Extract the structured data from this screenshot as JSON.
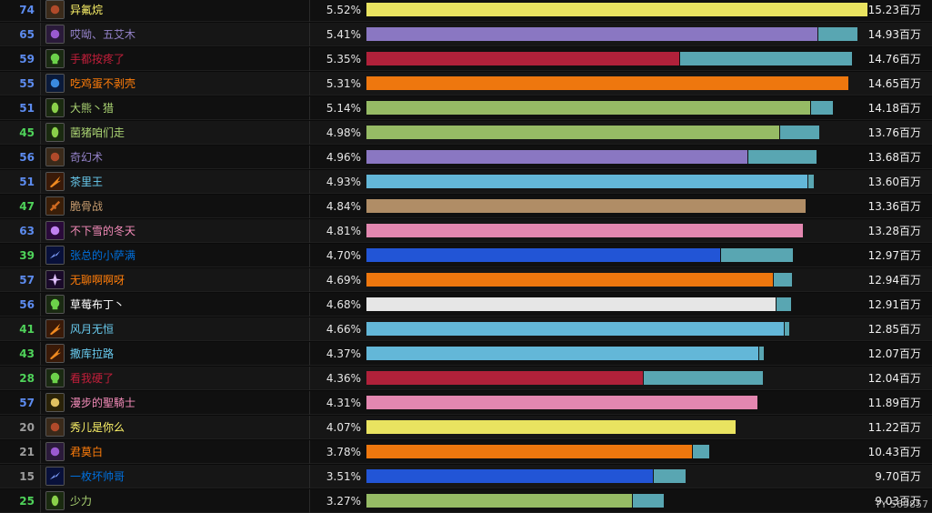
{
  "watermark": "TY 569857",
  "rows": [
    {
      "rank": "74",
      "rank_color": "#5d8cf0",
      "name": "异氟烷",
      "name_color": "#fff569",
      "icon": "warlock-icon",
      "pct": "5.52%",
      "bar_color": "#e9e360",
      "main": 15.23,
      "total": 15.23,
      "amount": "15.23百万"
    },
    {
      "rank": "65",
      "rank_color": "#5d8cf0",
      "name": "哎呦、五艾木",
      "name_color": "#9482c9",
      "icon": "demon-icon",
      "pct": "5.41%",
      "bar_color": "#8a77c2",
      "main": 13.7,
      "total": 14.93,
      "amount": "14.93百万"
    },
    {
      "rank": "59",
      "rank_color": "#5d8cf0",
      "name": "手都按疼了",
      "name_color": "#c41f3b",
      "icon": "skull-icon",
      "pct": "5.35%",
      "bar_color": "#b0213a",
      "main": 9.5,
      "total": 14.76,
      "amount": "14.76百万"
    },
    {
      "rank": "55",
      "rank_color": "#5d8cf0",
      "name": "吃鸡蛋不剥壳",
      "name_color": "#ff7d0a",
      "icon": "claw-icon",
      "pct": "5.31%",
      "bar_color": "#ee770e",
      "main": 14.65,
      "total": 14.65,
      "amount": "14.65百万"
    },
    {
      "rank": "51",
      "rank_color": "#5d8cf0",
      "name": "大熊丶猎",
      "name_color": "#abd473",
      "icon": "hunter-icon",
      "pct": "5.14%",
      "bar_color": "#96bb65",
      "main": 13.5,
      "total": 14.18,
      "amount": "14.18百万"
    },
    {
      "rank": "45",
      "rank_color": "#4fd35a",
      "name": "菌猪咱们走",
      "name_color": "#abd473",
      "icon": "hunter-icon",
      "pct": "4.98%",
      "bar_color": "#96bb65",
      "main": 12.55,
      "total": 13.76,
      "amount": "13.76百万"
    },
    {
      "rank": "56",
      "rank_color": "#5d8cf0",
      "name": "奇幻术",
      "name_color": "#9482c9",
      "icon": "warlock-icon",
      "pct": "4.96%",
      "bar_color": "#8a77c2",
      "main": 11.57,
      "total": 13.68,
      "amount": "13.68百万"
    },
    {
      "rank": "51",
      "rank_color": "#5d8cf0",
      "name": "茶里王",
      "name_color": "#69ccf0",
      "icon": "fire-icon",
      "pct": "4.93%",
      "bar_color": "#63b7d8",
      "main": 13.4,
      "total": 13.6,
      "amount": "13.60百万"
    },
    {
      "rank": "47",
      "rank_color": "#4fd35a",
      "name": "脆骨战",
      "name_color": "#c79c6e",
      "icon": "sword-icon",
      "pct": "4.84%",
      "bar_color": "#b08d66",
      "main": 13.36,
      "total": 13.36,
      "amount": "13.36百万"
    },
    {
      "rank": "63",
      "rank_color": "#5d8cf0",
      "name": "不下雪的冬天",
      "name_color": "#f58cba",
      "icon": "arcane-icon",
      "pct": "4.81%",
      "bar_color": "#e387b0",
      "main": 13.28,
      "total": 13.28,
      "amount": "13.28百万"
    },
    {
      "rank": "39",
      "rank_color": "#4fd35a",
      "name": "张总的小萨满",
      "name_color": "#0070de",
      "icon": "lightning-icon",
      "pct": "4.70%",
      "bar_color": "#2255d6",
      "main": 10.75,
      "total": 12.97,
      "amount": "12.97百万"
    },
    {
      "rank": "57",
      "rank_color": "#5d8cf0",
      "name": "无聊啊啊呀",
      "name_color": "#ff7d0a",
      "icon": "star-icon",
      "pct": "4.69%",
      "bar_color": "#ee770e",
      "main": 12.35,
      "total": 12.94,
      "amount": "12.94百万"
    },
    {
      "rank": "56",
      "rank_color": "#5d8cf0",
      "name": "草莓布丁丶",
      "name_color": "#ffffff",
      "icon": "skull-icon",
      "pct": "4.68%",
      "bar_color": "#e6e6e6",
      "main": 12.45,
      "total": 12.91,
      "amount": "12.91百万"
    },
    {
      "rank": "41",
      "rank_color": "#4fd35a",
      "name": "风月无恒",
      "name_color": "#69ccf0",
      "icon": "fire-icon",
      "pct": "4.66%",
      "bar_color": "#63b7d8",
      "main": 12.7,
      "total": 12.85,
      "amount": "12.85百万"
    },
    {
      "rank": "43",
      "rank_color": "#4fd35a",
      "name": "撒库拉路",
      "name_color": "#69ccf0",
      "icon": "fire-icon",
      "pct": "4.37%",
      "bar_color": "#63b7d8",
      "main": 11.9,
      "total": 12.07,
      "amount": "12.07百万"
    },
    {
      "rank": "28",
      "rank_color": "#4fd35a",
      "name": "看我硬了",
      "name_color": "#c41f3b",
      "icon": "skull-icon",
      "pct": "4.36%",
      "bar_color": "#b0213a",
      "main": 8.4,
      "total": 12.04,
      "amount": "12.04百万"
    },
    {
      "rank": "57",
      "rank_color": "#5d8cf0",
      "name": "漫步的聖騎士",
      "name_color": "#f58cba",
      "icon": "paladin-icon",
      "pct": "4.31%",
      "bar_color": "#e387b0",
      "main": 11.89,
      "total": 11.89,
      "amount": "11.89百万"
    },
    {
      "rank": "20",
      "rank_color": "#9d9d9d",
      "name": "秀儿是你么",
      "name_color": "#fff569",
      "icon": "warlock-icon",
      "pct": "4.07%",
      "bar_color": "#e9e360",
      "main": 11.22,
      "total": 11.22,
      "amount": "11.22百万"
    },
    {
      "rank": "21",
      "rank_color": "#9d9d9d",
      "name": "君莫白",
      "name_color": "#ff7d0a",
      "icon": "demon-icon",
      "pct": "3.78%",
      "bar_color": "#ee770e",
      "main": 9.9,
      "total": 10.43,
      "amount": "10.43百万"
    },
    {
      "rank": "15",
      "rank_color": "#9d9d9d",
      "name": "一枚坏帅哥",
      "name_color": "#0070de",
      "icon": "lightning-icon",
      "pct": "3.51%",
      "bar_color": "#2255d6",
      "main": 8.7,
      "total": 9.7,
      "amount": "9.70百万"
    },
    {
      "rank": "25",
      "rank_color": "#4fd35a",
      "name": "少力",
      "name_color": "#abd473",
      "icon": "hunter-icon",
      "pct": "3.27%",
      "bar_color": "#96bb65",
      "main": 8.07,
      "total": 9.03,
      "amount": "9.03百万"
    }
  ]
}
